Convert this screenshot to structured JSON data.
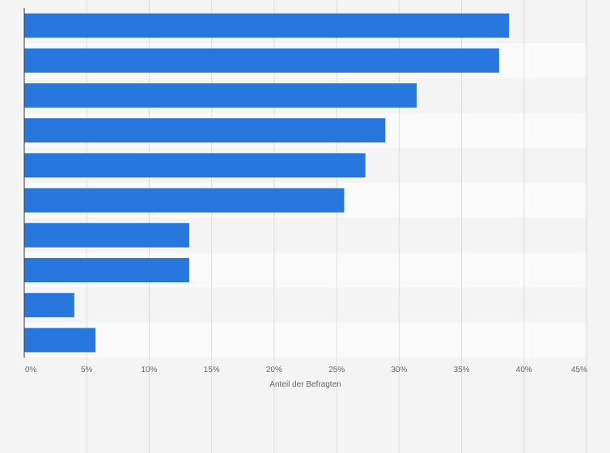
{
  "chart_data": {
    "type": "bar",
    "orientation": "horizontal",
    "title": "",
    "xlabel": "Anteil der Befragten",
    "ylabel": "",
    "categories": [
      "",
      "",
      "",
      "",
      "",
      "",
      "",
      "",
      "",
      ""
    ],
    "values": [
      38.8,
      38.0,
      31.4,
      28.9,
      27.3,
      25.6,
      13.2,
      13.2,
      4.0,
      5.7
    ],
    "xlim": [
      0,
      45
    ],
    "xticks": [
      0,
      5,
      10,
      15,
      20,
      25,
      30,
      35,
      40,
      45
    ],
    "tick_labels": [
      "0%",
      "5%",
      "10%",
      "15%",
      "20%",
      "25%",
      "30%",
      "35%",
      "40%",
      "45%"
    ],
    "grid": true,
    "legend": "none",
    "colors": {
      "bar": "#2777de",
      "background": "#f4f4f4",
      "band_light": "#fafafa",
      "band_dark": "#f4f4f4",
      "grid": "#dddddd",
      "axis": "#333333",
      "tick_text": "#666666"
    }
  }
}
